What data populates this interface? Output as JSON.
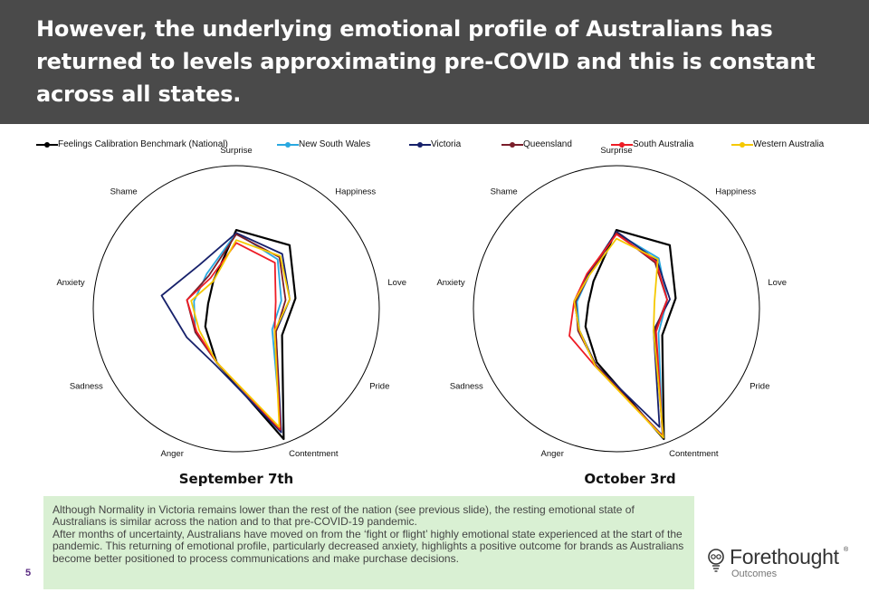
{
  "slide": {
    "title": "However, the underlying emotional profile of Australians has returned to levels approximating pre-COVID and this is constant across all states.",
    "page_number": "5",
    "note_lines": [
      "Although Normality in Victoria remains lower than the rest of the nation (see previous slide), the resting emotional state of Australians is similar across the nation and to that pre-COVID-19 pandemic.",
      "After months of uncertainty, Australians have moved on from the ‘fight or flight’ highly emotional state experienced at the start of the pandemic.  This returning of emotional profile, particularly decreased anxiety, highlights a positive outcome for brands as Australians become better positioned to process communications and make purchase decisions."
    ],
    "logo": {
      "brand": "Forethought",
      "reg": "®",
      "sub": "Outcomes",
      "icon": "lightbulb-icon"
    }
  },
  "chart_data": [
    {
      "type": "radar",
      "title": "September 7th",
      "axes": [
        "Surprise",
        "Happiness",
        "Love",
        "Pride",
        "Contentment",
        "Anger",
        "Sadness",
        "Anxiety",
        "Shame"
      ],
      "range": [
        0,
        1
      ],
      "series": [
        {
          "name": "Feelings Calibration Benchmark (National)",
          "color": "#000000",
          "values": [
            0.55,
            0.58,
            0.42,
            0.37,
            0.97,
            0.4,
            0.25,
            0.2,
            0.25
          ]
        },
        {
          "name": "New South Wales",
          "color": "#29a8e0",
          "values": [
            0.53,
            0.45,
            0.32,
            0.29,
            0.92,
            0.4,
            0.33,
            0.3,
            0.32
          ]
        },
        {
          "name": "Victoria",
          "color": "#17216b",
          "values": [
            0.53,
            0.5,
            0.38,
            0.32,
            0.92,
            0.42,
            0.4,
            0.53,
            0.4
          ]
        },
        {
          "name": "Queensland",
          "color": "#7a1e2a",
          "values": [
            0.52,
            0.47,
            0.35,
            0.32,
            0.9,
            0.4,
            0.33,
            0.35,
            0.3
          ]
        },
        {
          "name": "South Australia",
          "color": "#ee1c25",
          "values": [
            0.46,
            0.42,
            0.28,
            0.31,
            0.9,
            0.4,
            0.32,
            0.35,
            0.28
          ]
        },
        {
          "name": "Western Australia",
          "color": "#f5c800",
          "values": [
            0.48,
            0.48,
            0.38,
            0.31,
            0.88,
            0.4,
            0.3,
            0.32,
            0.25
          ]
        }
      ]
    },
    {
      "type": "radar",
      "title": "October 3rd",
      "axes": [
        "Surprise",
        "Happiness",
        "Love",
        "Pride",
        "Contentment",
        "Anger",
        "Sadness",
        "Anxiety",
        "Shame"
      ],
      "range": [
        0,
        1
      ],
      "series": [
        {
          "name": "Feelings Calibration Benchmark (National)",
          "color": "#000000",
          "values": [
            0.55,
            0.58,
            0.42,
            0.37,
            0.97,
            0.4,
            0.25,
            0.2,
            0.25
          ]
        },
        {
          "name": "New South Wales",
          "color": "#29a8e0",
          "values": [
            0.53,
            0.46,
            0.36,
            0.34,
            0.94,
            0.43,
            0.3,
            0.28,
            0.3
          ]
        },
        {
          "name": "Victoria",
          "color": "#17216b",
          "values": [
            0.54,
            0.44,
            0.38,
            0.3,
            0.88,
            0.42,
            0.3,
            0.3,
            0.31
          ]
        },
        {
          "name": "Queensland",
          "color": "#7a1e2a",
          "values": [
            0.53,
            0.42,
            0.36,
            0.31,
            0.95,
            0.42,
            0.31,
            0.29,
            0.3
          ]
        },
        {
          "name": "South Australia",
          "color": "#ee1c25",
          "values": [
            0.52,
            0.43,
            0.36,
            0.32,
            0.95,
            0.43,
            0.38,
            0.3,
            0.32
          ]
        },
        {
          "name": "Western Australia",
          "color": "#f5c800",
          "values": [
            0.49,
            0.45,
            0.27,
            0.3,
            0.96,
            0.43,
            0.3,
            0.3,
            0.3
          ]
        }
      ]
    }
  ]
}
